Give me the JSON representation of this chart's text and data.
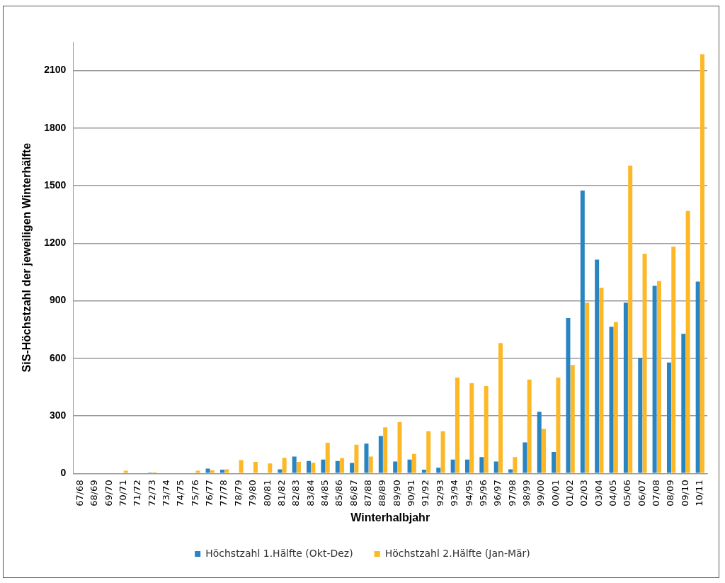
{
  "chart_data": {
    "type": "bar",
    "xlabel": "Winterhalbjahr",
    "ylabel": "SiS-Höchstzahl der jeweiligen Winterhälfte",
    "categories": [
      "67/68",
      "68/69",
      "69/70",
      "70/71",
      "71/72",
      "72/73",
      "73/74",
      "74/75",
      "75/76",
      "76/77",
      "77/78",
      "78/79",
      "79/80",
      "80/81",
      "81/82",
      "82/83",
      "83/84",
      "84/85",
      "85/86",
      "86/87",
      "87/88",
      "88/89",
      "89/90",
      "90/91",
      "91/92",
      "92/93",
      "93/94",
      "94/95",
      "95/96",
      "96/97",
      "97/98",
      "98/99",
      "99/00",
      "00/01",
      "01/02",
      "02/03",
      "03/04",
      "04/05",
      "05/06",
      "06/07",
      "07/08",
      "08/09",
      "09/10",
      "10/11"
    ],
    "series": [
      {
        "name": "Höchstzahl 1.Hälfte (Okt-Dez)",
        "color": "#2a84c0",
        "values": [
          0,
          0,
          null,
          null,
          0,
          5,
          0,
          0,
          null,
          25,
          20,
          0,
          0,
          0,
          22,
          88,
          65,
          72,
          65,
          55,
          155,
          195,
          62,
          72,
          20,
          30,
          72,
          72,
          85,
          62,
          22,
          162,
          322,
          112,
          810,
          1475,
          1115,
          765,
          890,
          603,
          978,
          578,
          728,
          1000
        ]
      },
      {
        "name": "Höchstzahl 2.Hälfte (Jan-Mär)",
        "color": "#fdb827",
        "values": [
          null,
          null,
          0,
          14,
          0,
          7,
          0,
          0,
          14,
          16,
          22,
          70,
          60,
          52,
          82,
          60,
          56,
          160,
          80,
          150,
          88,
          240,
          268,
          102,
          220,
          220,
          500,
          470,
          455,
          680,
          85,
          490,
          232,
          500,
          565,
          890,
          968,
          790,
          1605,
          1145,
          1003,
          1182,
          1368,
          2185
        ]
      }
    ],
    "ylim": [
      0,
      2250
    ],
    "yticks": [
      0,
      300,
      600,
      900,
      1200,
      1500,
      1800,
      2100
    ],
    "grid": "y",
    "legend": "bottom"
  }
}
